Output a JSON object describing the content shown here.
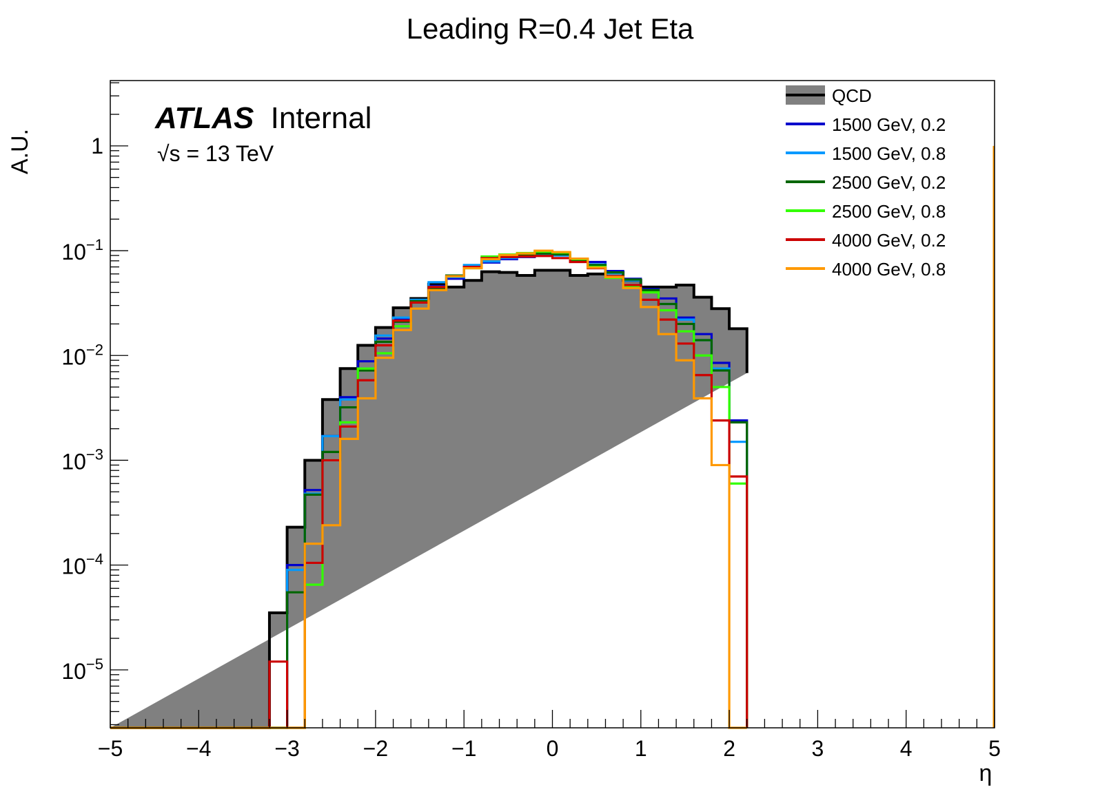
{
  "chart_data": {
    "type": "histogram",
    "title": "Leading R=0.4 Jet Eta",
    "xlabel": "η",
    "ylabel": "A.U.",
    "xlim": [
      -5,
      5
    ],
    "ylim": [
      2.8e-06,
      4.2
    ],
    "yscale": "log",
    "grid": false,
    "legend_position": "top-right",
    "x_ticks": [
      {
        "v": -5,
        "label": "−5"
      },
      {
        "v": -4,
        "label": "−4"
      },
      {
        "v": -3,
        "label": "−3"
      },
      {
        "v": -2,
        "label": "−2"
      },
      {
        "v": -1,
        "label": "−1"
      },
      {
        "v": 0,
        "label": "0"
      },
      {
        "v": 1,
        "label": "1"
      },
      {
        "v": 2,
        "label": "2"
      },
      {
        "v": 3,
        "label": "3"
      },
      {
        "v": 4,
        "label": "4"
      },
      {
        "v": 5,
        "label": "5"
      }
    ],
    "y_ticks": [
      {
        "v": 1,
        "base": "1",
        "exp": ""
      },
      {
        "v": 0.1,
        "base": "10",
        "exp": "−1"
      },
      {
        "v": 0.01,
        "base": "10",
        "exp": "−2"
      },
      {
        "v": 0.001,
        "base": "10",
        "exp": "−3"
      },
      {
        "v": 0.0001,
        "base": "10",
        "exp": "−4"
      },
      {
        "v": 1e-05,
        "base": "10",
        "exp": "−5"
      }
    ],
    "bin_edges": [
      -3.2,
      -3.0,
      -2.8,
      -2.6,
      -2.4,
      -2.2,
      -2.0,
      -1.8,
      -1.6,
      -1.4,
      -1.2,
      -1.0,
      -0.8,
      -0.6,
      -0.4,
      -0.2,
      0.0,
      0.2,
      0.4,
      0.6,
      0.8,
      1.0,
      1.2,
      1.4,
      1.6,
      1.8,
      2.0,
      2.2
    ],
    "series": [
      {
        "name": "QCD",
        "color": "#000000",
        "filled": true,
        "fill": "#808080",
        "values": [
          3.5e-05,
          0.00023,
          0.001,
          0.0038,
          0.0075,
          0.0125,
          0.0185,
          0.0285,
          0.035,
          0.048,
          0.045,
          0.052,
          0.063,
          0.062,
          0.058,
          0.065,
          0.065,
          0.058,
          0.06,
          0.062,
          0.052,
          0.045,
          0.045,
          0.047,
          0.036,
          0.028,
          0.018,
          0.0068
        ]
      },
      {
        "name": "1500 GeV, 0.2",
        "color": "#0000cc",
        "filled": false,
        "values": [
          null,
          0.0001,
          0.00052,
          0.0017,
          0.004,
          0.0088,
          0.0145,
          0.022,
          0.032,
          0.046,
          0.054,
          0.07,
          0.077,
          0.083,
          0.087,
          0.092,
          0.09,
          0.081,
          0.078,
          0.064,
          0.054,
          0.043,
          0.035,
          0.023,
          0.016,
          0.0085,
          0.0024,
          null
        ]
      },
      {
        "name": "1500 GeV, 0.8",
        "color": "#0099ff",
        "filled": false,
        "values": [
          null,
          9e-05,
          0.00048,
          0.0017,
          0.0038,
          0.0075,
          0.0155,
          0.023,
          0.034,
          0.05,
          0.056,
          0.073,
          0.079,
          0.085,
          0.089,
          0.093,
          0.09,
          0.083,
          0.074,
          0.061,
          0.052,
          0.041,
          0.031,
          0.022,
          0.014,
          0.0075,
          0.0015,
          null
        ]
      },
      {
        "name": "2500 GeV, 0.2",
        "color": "#006600",
        "filled": false,
        "values": [
          null,
          5.5e-05,
          0.00047,
          0.0012,
          0.0032,
          0.0072,
          0.0135,
          0.021,
          0.033,
          0.043,
          0.058,
          0.07,
          0.085,
          0.088,
          0.091,
          0.094,
          0.092,
          0.081,
          0.073,
          0.062,
          0.053,
          0.042,
          0.031,
          0.02,
          0.014,
          0.0072,
          0.0023,
          null
        ]
      },
      {
        "name": "2500 GeV, 0.8",
        "color": "#33ff00",
        "filled": false,
        "values": [
          null,
          null,
          6.5e-05,
          0.001,
          0.0023,
          0.0075,
          0.0105,
          0.019,
          0.032,
          0.045,
          0.057,
          0.068,
          0.088,
          0.092,
          0.095,
          0.098,
          0.096,
          0.083,
          0.07,
          0.055,
          0.046,
          0.04,
          0.027,
          0.017,
          0.01,
          0.005,
          0.0006,
          null
        ]
      },
      {
        "name": "4000 GeV, 0.2",
        "color": "#cc0000",
        "filled": false,
        "values": [
          1.2e-05,
          null,
          0.000105,
          0.001,
          0.0021,
          0.0058,
          0.0125,
          0.0215,
          0.032,
          0.045,
          0.057,
          0.07,
          0.085,
          0.087,
          0.088,
          0.089,
          0.085,
          0.078,
          0.068,
          0.057,
          0.047,
          0.034,
          0.022,
          0.013,
          0.0065,
          0.0024,
          0.0007,
          null
        ]
      },
      {
        "name": "4000 GeV, 0.8",
        "color": "#ff9900",
        "filled": false,
        "values": [
          null,
          null,
          0.00016,
          0.00024,
          0.0016,
          0.0039,
          0.0095,
          0.0175,
          0.028,
          0.042,
          0.057,
          0.068,
          0.083,
          0.091,
          0.094,
          0.1,
          0.097,
          0.084,
          0.069,
          0.056,
          0.044,
          0.029,
          0.016,
          0.009,
          0.0039,
          0.0009,
          null,
          null
        ]
      }
    ]
  },
  "annotation": {
    "atlas": "ATLAS",
    "internal": "Internal",
    "sqrt": "√s",
    "energy": " = 13 TeV"
  }
}
